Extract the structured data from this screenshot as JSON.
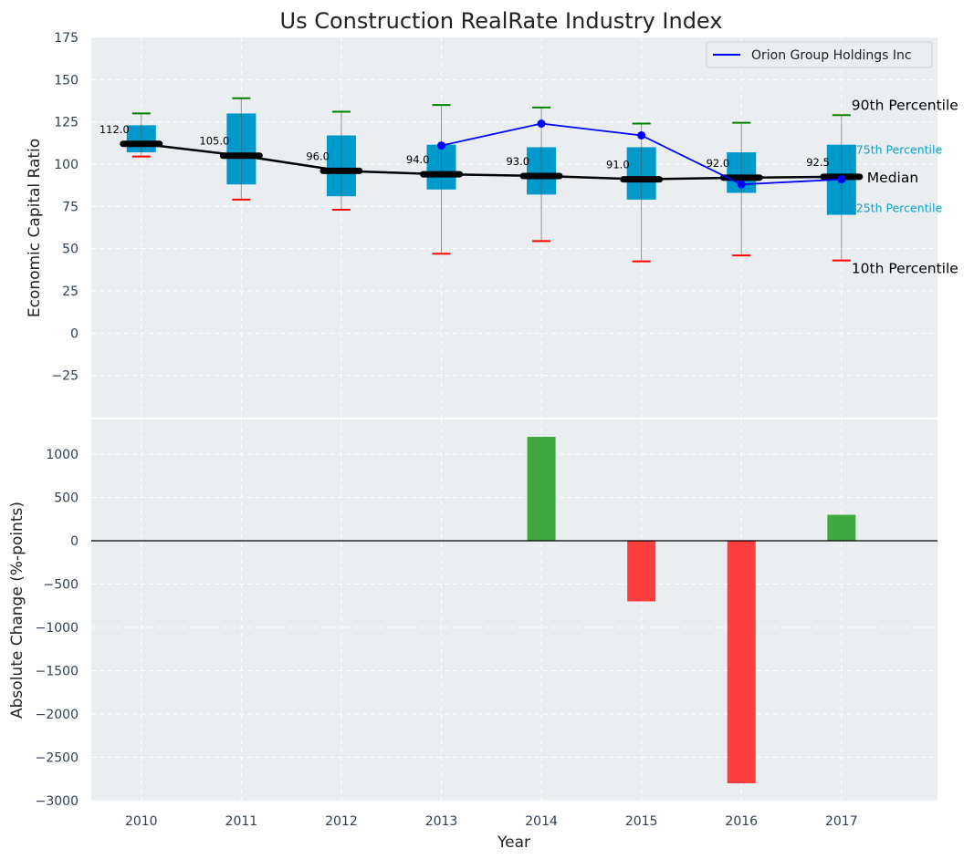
{
  "chart_data": [
    {
      "type": "box",
      "title": "Us Construction RealRate Industry Index",
      "xlabel": "",
      "ylabel": "Economic Capital Ratio",
      "ylim": [
        -50,
        175
      ],
      "yticks": [
        -25,
        0,
        25,
        50,
        75,
        100,
        125,
        150,
        175
      ],
      "grid": true,
      "categories": [
        "2010",
        "2011",
        "2012",
        "2013",
        "2014",
        "2015",
        "2016",
        "2017"
      ],
      "p10": [
        104.5,
        79,
        73,
        47,
        54.5,
        42.5,
        46,
        43
      ],
      "p25": [
        107,
        88,
        81,
        85,
        82,
        79,
        83,
        70
      ],
      "median": [
        112.0,
        105.0,
        96.0,
        94.0,
        93.0,
        91.0,
        92.0,
        92.5
      ],
      "p75": [
        123,
        130,
        117,
        111.5,
        110,
        110,
        107,
        111.5
      ],
      "p90": [
        130,
        139,
        131,
        135,
        133.5,
        124,
        124.5,
        129
      ],
      "median_labels": [
        "112.0",
        "105.0",
        "96.0",
        "94.0",
        "93.0",
        "91.0",
        "92.0",
        "92.5"
      ],
      "series": [
        {
          "name": "Orion Group Holdings Inc",
          "color": "#0000ff",
          "x": [
            "2013",
            "2014",
            "2015",
            "2016",
            "2017"
          ],
          "values": [
            111,
            124,
            117,
            88,
            91
          ]
        }
      ],
      "legend": {
        "position": "top-right",
        "entries": [
          "Orion Group Holdings Inc"
        ]
      },
      "annotations": {
        "p90": "90th Percentile",
        "p75": "75th Percentile",
        "median": "Median",
        "p25": "25th Percentile",
        "p10": "10th Percentile"
      },
      "colors": {
        "box": "#0099cc",
        "median": "#000000",
        "p90_cap": "#008000",
        "p10_cap": "#ff0000",
        "background": "#eaeef0"
      }
    },
    {
      "type": "bar",
      "title": "",
      "xlabel": "Year",
      "ylabel": "Absolute Change (%-points)",
      "ylim": [
        -3000,
        1400
      ],
      "yticks": [
        -3000,
        -2500,
        -2000,
        -1500,
        -1000,
        -500,
        0,
        500,
        1000
      ],
      "grid": true,
      "categories": [
        "2010",
        "2011",
        "2012",
        "2013",
        "2014",
        "2015",
        "2016",
        "2017"
      ],
      "values": [
        null,
        null,
        null,
        null,
        1200,
        -700,
        -2800,
        300
      ],
      "colors": {
        "positive": "#2ca02c",
        "negative": "#ff2a2a"
      }
    }
  ]
}
